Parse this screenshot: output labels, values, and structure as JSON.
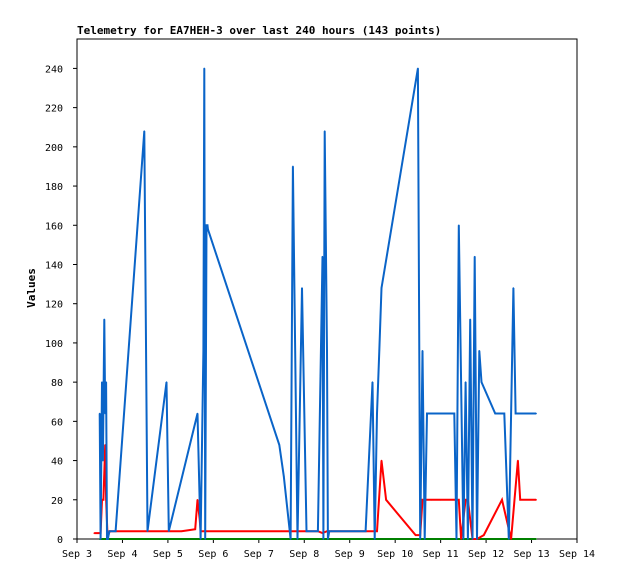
{
  "chart_data": {
    "type": "line",
    "title": "Telemetry for EA7HEH-3 over last 240 hours (143 points)",
    "xlabel": "",
    "ylabel": "Values",
    "x_unit": "days (Sep)",
    "xlim": [
      3,
      14
    ],
    "ylim": [
      0,
      255
    ],
    "x_ticks": [
      {
        "value": 3,
        "label": "Sep 3"
      },
      {
        "value": 4,
        "label": "Sep 4"
      },
      {
        "value": 5,
        "label": "Sep 5"
      },
      {
        "value": 6,
        "label": "Sep 6"
      },
      {
        "value": 7,
        "label": "Sep 7"
      },
      {
        "value": 8,
        "label": "Sep 8"
      },
      {
        "value": 9,
        "label": "Sep 9"
      },
      {
        "value": 10,
        "label": "Sep 10"
      },
      {
        "value": 11,
        "label": "Sep 11"
      },
      {
        "value": 12,
        "label": "Sep 12"
      },
      {
        "value": 13,
        "label": "Sep 13"
      },
      {
        "value": 14,
        "label": "Sep 14"
      }
    ],
    "y_ticks": [
      {
        "value": 0,
        "label": "0"
      },
      {
        "value": 20,
        "label": "20"
      },
      {
        "value": 40,
        "label": "40"
      },
      {
        "value": 60,
        "label": "60"
      },
      {
        "value": 80,
        "label": "80"
      },
      {
        "value": 100,
        "label": "100"
      },
      {
        "value": 120,
        "label": "120"
      },
      {
        "value": 140,
        "label": "140"
      },
      {
        "value": 160,
        "label": "160"
      },
      {
        "value": 180,
        "label": "180"
      },
      {
        "value": 200,
        "label": "200"
      },
      {
        "value": 220,
        "label": "220"
      },
      {
        "value": 240,
        "label": "240"
      }
    ],
    "grid": false,
    "legend": "none",
    "series": [
      {
        "color": "#0000ff",
        "x": [
          3.5,
          3.7
        ],
        "y": [
          0,
          0
        ]
      },
      {
        "color": "#008000",
        "x": [
          3.5,
          13.1
        ],
        "y": [
          0,
          0
        ]
      },
      {
        "color": "#ff0000",
        "x": [
          3.38,
          3.48,
          3.52,
          3.55,
          3.58,
          3.62,
          3.64,
          3.67,
          3.69,
          3.72,
          3.73,
          3.85,
          4.5,
          5.3,
          5.6,
          5.65,
          5.7,
          5.72,
          5.78,
          5.8,
          5.85,
          7.5,
          7.9,
          8.0,
          8.3,
          8.4,
          8.5,
          8.6,
          8.8,
          9.0,
          9.3,
          9.6,
          9.7,
          9.8,
          10.05,
          10.45,
          10.55,
          10.6,
          10.65,
          10.8,
          11.0,
          11.3,
          11.4,
          11.45,
          11.55,
          11.6,
          11.7,
          11.8,
          11.95,
          12.35,
          12.55,
          12.7,
          12.75,
          13.1
        ],
        "y": [
          3,
          3,
          3,
          20,
          20,
          48,
          20,
          2,
          2,
          4,
          4,
          4,
          4,
          4,
          5,
          20,
          10,
          4,
          4,
          4,
          4,
          4,
          4,
          4,
          4,
          3,
          4,
          4,
          4,
          4,
          4,
          4,
          40,
          20,
          13,
          2,
          2,
          20,
          20,
          20,
          20,
          20,
          20,
          0,
          20,
          20,
          0,
          0,
          2,
          20,
          0,
          40,
          20,
          20
        ]
      },
      {
        "color": "#0a64c8",
        "x": [
          3.5,
          3.52,
          3.55,
          3.57,
          3.6,
          3.62,
          3.64,
          3.66,
          3.68,
          3.71,
          3.73,
          3.85,
          4.48,
          4.55,
          4.97,
          5.02,
          5.65,
          5.72,
          5.78,
          5.8,
          5.82,
          5.85,
          5.87,
          5.88,
          7.45,
          7.55,
          7.7,
          7.75,
          7.85,
          7.95,
          8.05,
          8.1,
          8.15,
          8.2,
          8.25,
          8.3,
          8.4,
          8.42,
          8.45,
          8.5,
          8.52,
          8.55,
          8.6,
          9.1,
          9.35,
          9.5,
          9.55,
          9.6,
          9.65,
          9.7,
          10.5,
          10.55,
          10.6,
          10.65,
          10.7,
          11.2,
          11.3,
          11.35,
          11.4,
          11.5,
          11.55,
          11.6,
          11.65,
          11.7,
          11.75,
          11.8,
          11.85,
          11.9,
          12.2,
          12.4,
          12.5,
          12.55,
          12.6,
          12.65,
          12.7,
          12.8,
          13.1
        ],
        "y": [
          64,
          0,
          80,
          40,
          112,
          64,
          80,
          0,
          0,
          4,
          4,
          4,
          208,
          4,
          80,
          4,
          64,
          0,
          96,
          240,
          0,
          160,
          160,
          158,
          48,
          32,
          0,
          190,
          0,
          128,
          4,
          4,
          4,
          4,
          4,
          4,
          144,
          0,
          208,
          96,
          0,
          4,
          4,
          4,
          4,
          80,
          0,
          64,
          96,
          128,
          240,
          0,
          96,
          0,
          64,
          64,
          64,
          0,
          160,
          0,
          80,
          0,
          112,
          0,
          144,
          0,
          96,
          80,
          64,
          64,
          0,
          64,
          128,
          64,
          64,
          64,
          64
        ]
      }
    ]
  }
}
